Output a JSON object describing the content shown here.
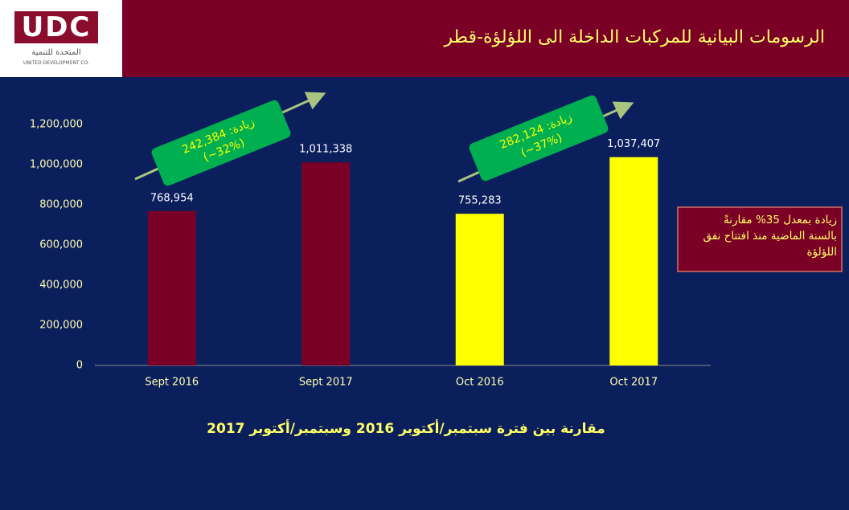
{
  "logo": {
    "brand": "UDC",
    "arabic_name": "المتحدة للتنمية",
    "english_name": "UNITED DEVELOPMENT CO."
  },
  "header": {
    "title": "الرسومات البيانية للمركبات الداخلة الى اللؤلؤة-قطر"
  },
  "note": {
    "lines": [
      "زيادة بمعدل 35% مقارنةً",
      "بالسنة الماضية منذ افتتاح نفق",
      "اللؤلؤة"
    ]
  },
  "chart_data": {
    "type": "bar",
    "title": "مقارنة بين فترة سبتمبر/أكتوبر 2016 وسبتمبر/أكتوبر 2017",
    "categories": [
      "Sept 2016",
      "Sept 2017",
      "Oct 2016",
      "Oct 2017"
    ],
    "values": [
      768954,
      1011338,
      755283,
      1037407
    ],
    "value_labels": [
      "768,954",
      "1,011,338",
      "755,283",
      "1,037,407"
    ],
    "colors": [
      "#7b0026",
      "#7b0026",
      "#ffff00",
      "#ffff00"
    ],
    "ylim": [
      0,
      1200000
    ],
    "yticks": [
      0,
      {
        "value": 200000,
        "label": "200,000"
      },
      {
        "value": 400000,
        "label": "400,000"
      },
      {
        "value": 600000,
        "label": "600,000"
      },
      {
        "value": 800000,
        "label": "800,000"
      },
      {
        "value": 1000000,
        "label": "1,000,000"
      },
      {
        "value": 1200000,
        "label": "1,200,000"
      }
    ],
    "grid": false,
    "annotations": [
      {
        "lines": [
          "زيادة: 242,384",
          "(~32%)"
        ]
      },
      {
        "lines": [
          "زيادة: 282,124",
          "(~37%)"
        ]
      }
    ]
  }
}
